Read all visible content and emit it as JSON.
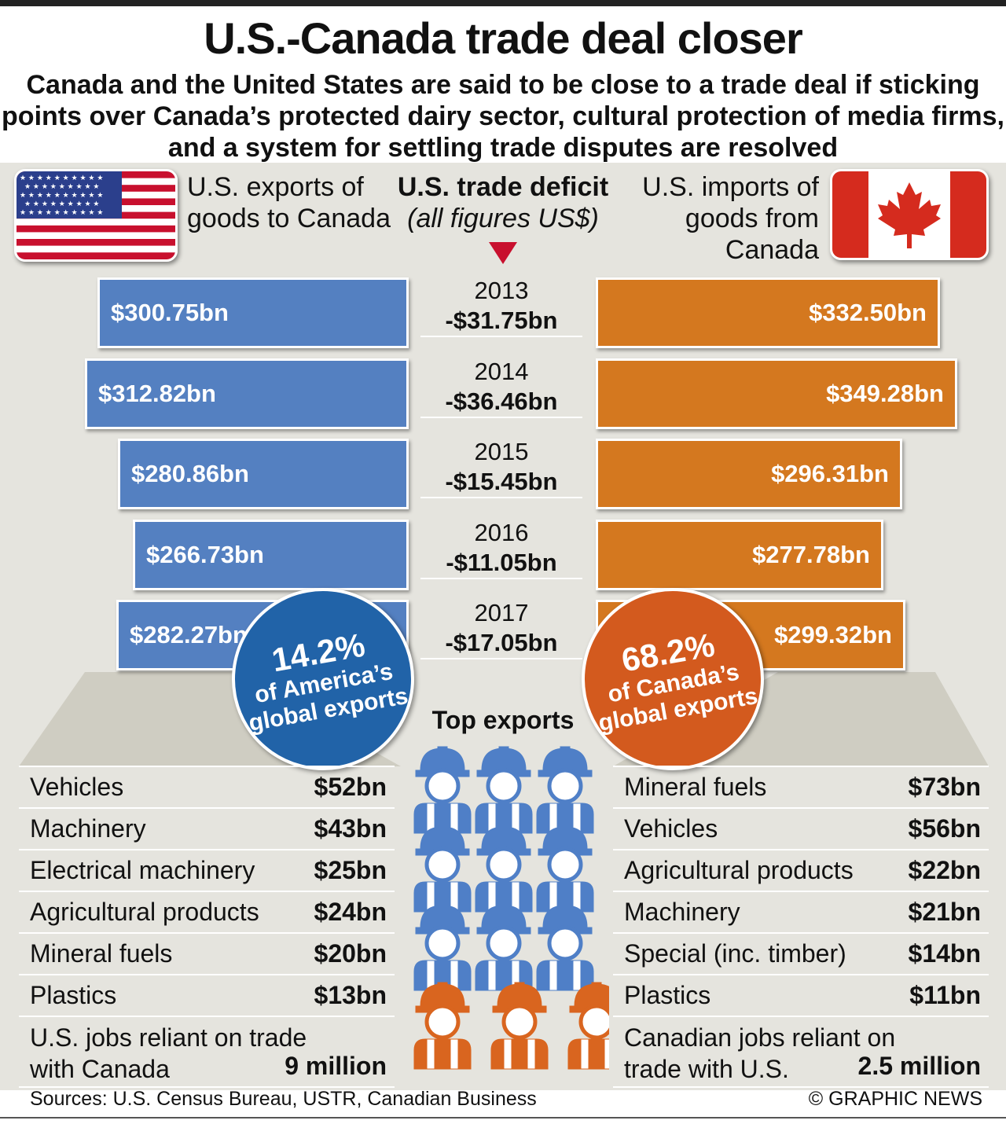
{
  "title": "U.S.-Canada trade deal closer",
  "subtitle": "Canada and the United States are said to be close to a trade deal if sticking points over Canada’s protected dairy sector, cultural protection of media firms, and a system for settling trade disputes are resolved",
  "header": {
    "left": "U.S. exports of goods to Canada",
    "right": "U.S. imports of goods from Canada",
    "middle_title": "U.S. trade deficit",
    "middle_sub": "(all figures US$)"
  },
  "colors": {
    "exports_bar": "#5480c1",
    "imports_bar": "#d4781f",
    "panel": "#e5e4de",
    "deficit_arrow": "#c8102e",
    "us_circle": "#2163a8",
    "ca_circle": "#d35a1e"
  },
  "chart_data": {
    "type": "bar",
    "categories": [
      "2013",
      "2014",
      "2015",
      "2016",
      "2017"
    ],
    "series": [
      {
        "name": "U.S. exports of goods to Canada",
        "values": [
          300.75,
          312.82,
          280.86,
          266.73,
          282.27
        ],
        "labels": [
          "$300.75bn",
          "$312.82bn",
          "$280.86bn",
          "$266.73bn",
          "$282.27bn"
        ]
      },
      {
        "name": "U.S. imports of goods from Canada",
        "values": [
          332.5,
          349.28,
          296.31,
          277.78,
          299.32
        ],
        "labels": [
          "$332.50bn",
          "$349.28bn",
          "$296.31bn",
          "$277.78bn",
          "$299.32bn"
        ]
      }
    ],
    "deficit": {
      "name": "U.S. trade deficit",
      "values": [
        -31.75,
        -36.46,
        -15.45,
        -11.05,
        -17.05
      ],
      "labels": [
        "-$31.75bn",
        "-$36.46bn",
        "-$15.45bn",
        "-$11.05bn",
        "-$17.05bn"
      ]
    },
    "unit": "US$ bn"
  },
  "circles": {
    "us": {
      "pct": "14.2%",
      "text": "of America’s global exports"
    },
    "ca": {
      "pct": "68.2%",
      "text": "of Canada’s global exports"
    }
  },
  "top_exports_title": "Top exports",
  "us_exports": [
    {
      "item": "Vehicles",
      "value": "$52bn"
    },
    {
      "item": "Machinery",
      "value": "$43bn"
    },
    {
      "item": "Electrical machinery",
      "value": "$25bn"
    },
    {
      "item": "Agricultural products",
      "value": "$24bn"
    },
    {
      "item": "Mineral fuels",
      "value": "$20bn"
    },
    {
      "item": "Plastics",
      "value": "$13bn"
    }
  ],
  "ca_exports": [
    {
      "item": "Mineral fuels",
      "value": "$73bn"
    },
    {
      "item": "Vehicles",
      "value": "$56bn"
    },
    {
      "item": "Agricultural products",
      "value": "$22bn"
    },
    {
      "item": "Machinery",
      "value": "$21bn"
    },
    {
      "item": "Special (inc. timber)",
      "value": "$14bn"
    },
    {
      "item": "Plastics",
      "value": "$11bn"
    }
  ],
  "us_jobs": {
    "label": "U.S. jobs reliant on trade with Canada",
    "value": "9 million"
  },
  "ca_jobs": {
    "label": "Canadian jobs reliant on trade with U.S.",
    "value": "2.5 million"
  },
  "sources": "Sources: U.S. Census Bureau, USTR, Canadian Business",
  "copyright": "© GRAPHIC NEWS",
  "icons": {
    "us_flag": "us-flag-icon",
    "ca_flag": "canada-flag-icon",
    "worker": "hard-hat-worker-icon"
  }
}
